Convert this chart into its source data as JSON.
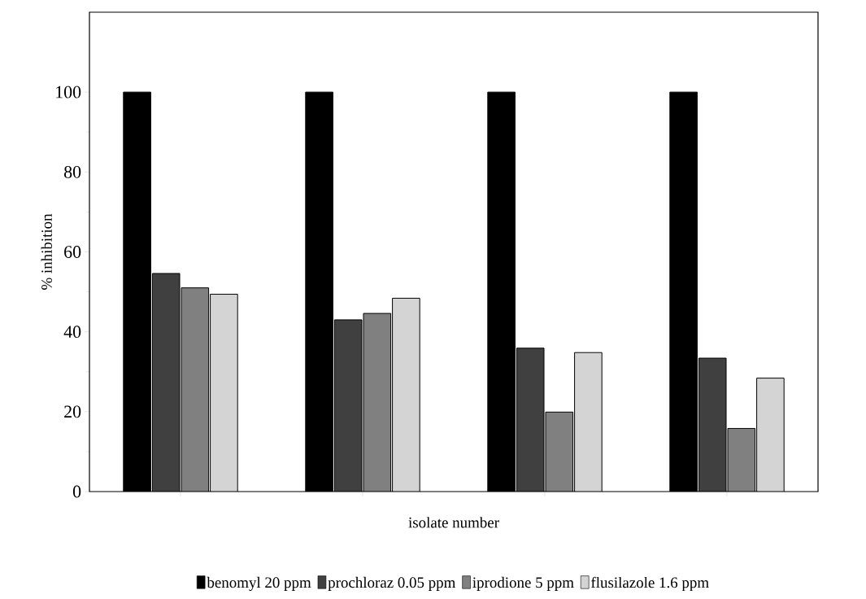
{
  "chart_data": {
    "type": "bar",
    "xlabel": "isolate number",
    "ylabel": "% inhibition",
    "categories": [
      null,
      null,
      null,
      null
    ],
    "series": [
      {
        "name": "benomyl 20 ppm",
        "color": "#000000",
        "values": [
          100,
          100,
          100,
          100
        ]
      },
      {
        "name": "prochloraz 0.05 ppm",
        "color": "#404040",
        "values": [
          54.6,
          43,
          35.9,
          33.4
        ]
      },
      {
        "name": "iprodione 5 ppm",
        "color": "#808080",
        "values": [
          51,
          44.6,
          19.9,
          15.8
        ]
      },
      {
        "name": "flusilazole 1.6 ppm",
        "color": "#d4d4d4",
        "values": [
          49.4,
          48.4,
          34.8,
          28.4
        ]
      }
    ],
    "ylim": [
      0,
      120
    ],
    "yticks": [
      0,
      20,
      40,
      60,
      80,
      100
    ],
    "grid": false,
    "legend": "bottom"
  }
}
